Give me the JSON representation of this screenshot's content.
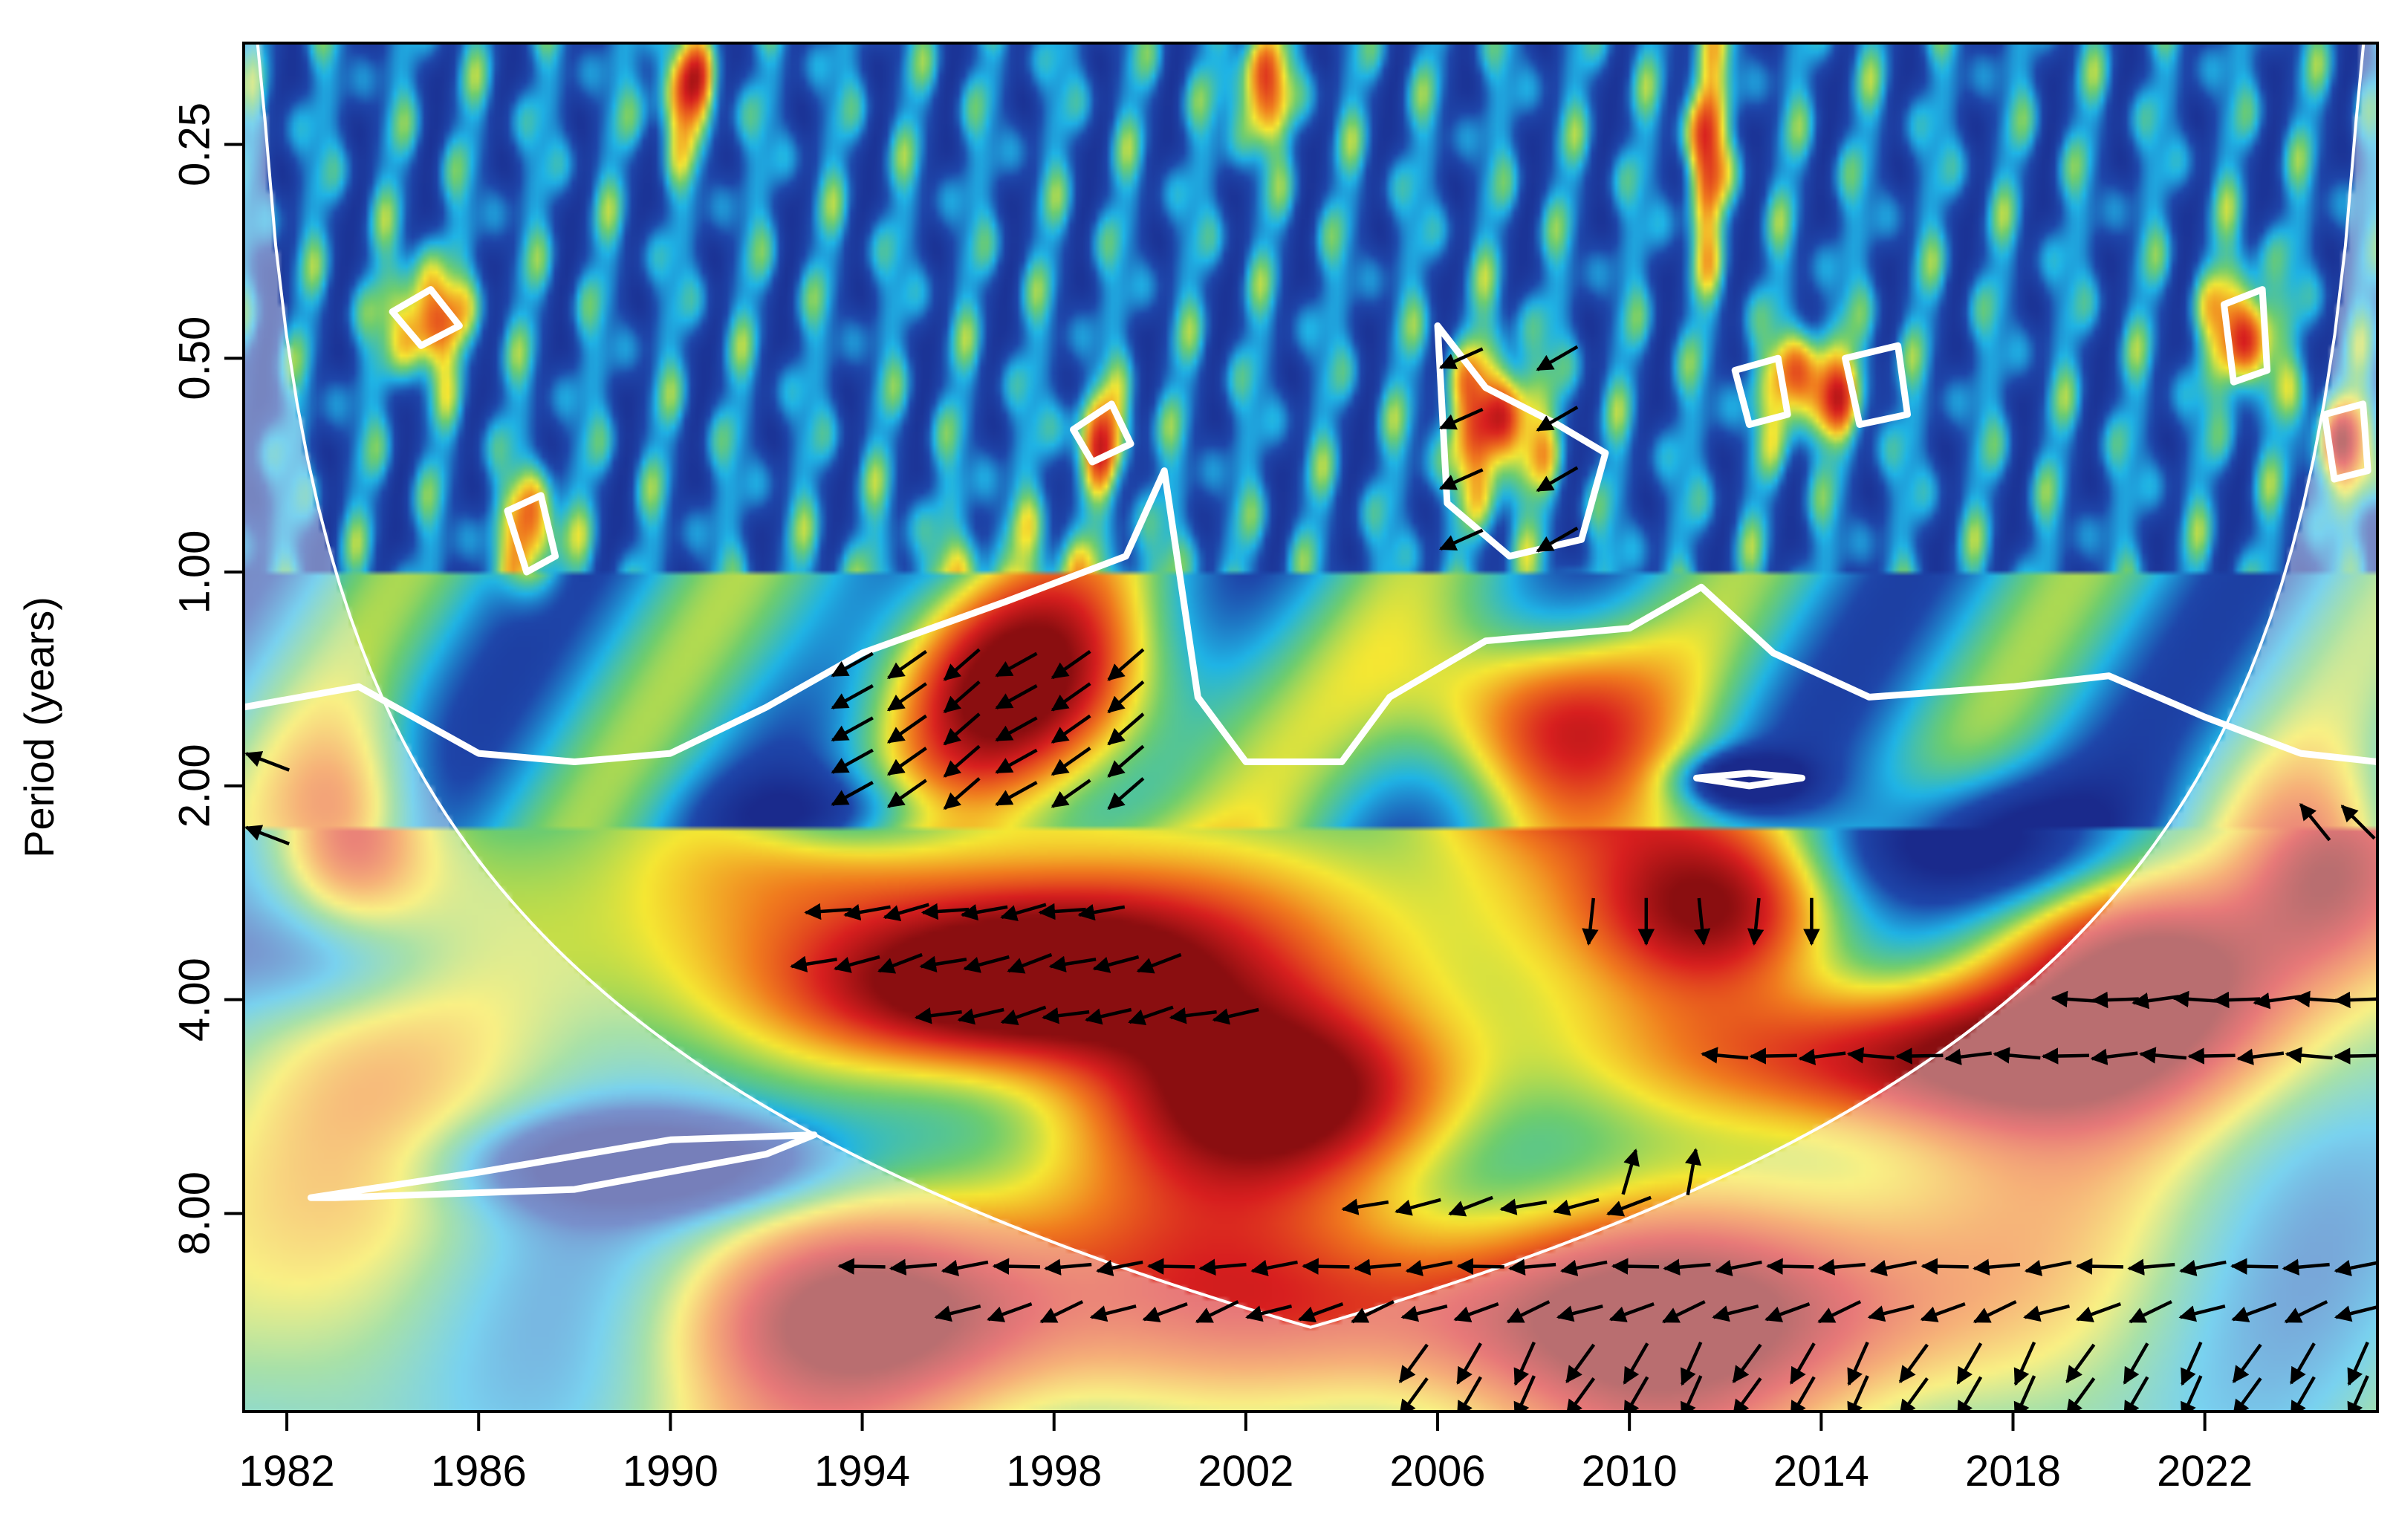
{
  "chart_data": {
    "type": "heatmap",
    "title": "",
    "xlabel": "",
    "ylabel": "Period (years)",
    "x_ticks": [
      "1982",
      "1986",
      "1990",
      "1994",
      "1998",
      "2002",
      "2006",
      "2010",
      "2014",
      "2018",
      "2022"
    ],
    "x_range": [
      1981.1,
      2025.6
    ],
    "y_ticks": [
      "0.25",
      "0.50",
      "1.00",
      "2.00",
      "4.00",
      "8.00"
    ],
    "y_scale": "log2",
    "y_range": [
      0.18,
      15.2
    ],
    "grid": false,
    "legend": "none",
    "colors": {
      "low": "#1a2a8c",
      "mid_low": "#1fb4e6",
      "mid": "#f5e733",
      "mid_high": "#f07a1e",
      "high": "#d81f1f",
      "peak": "#8a0e10",
      "contour": "#ffffff",
      "arrow": "#000000"
    },
    "significance_contours": [
      {
        "region": "main",
        "x": [
          1981.1,
          1983.5,
          1986,
          1988,
          1990,
          1992,
          1994,
          1997,
          1999.5,
          2000.3,
          2001,
          2002,
          2004,
          2005,
          2007,
          2010,
          2011.5,
          2013,
          2015,
          2018,
          2020,
          2022,
          2024,
          2025.6
        ],
        "y": [
          1.55,
          1.45,
          1.8,
          1.85,
          1.8,
          1.55,
          1.3,
          1.1,
          0.95,
          0.72,
          1.5,
          1.85,
          1.85,
          1.5,
          1.25,
          1.2,
          1.05,
          1.3,
          1.5,
          1.45,
          1.4,
          1.6,
          1.8,
          1.85
        ]
      },
      {
        "region": "island-2006",
        "x": [
          2006,
          2007,
          2008.5,
          2009.5,
          2009,
          2007.5,
          2006.2
        ],
        "y": [
          0.45,
          0.55,
          0.62,
          0.68,
          0.9,
          0.95,
          0.8
        ]
      },
      {
        "region": "island-2012",
        "x": [
          2011.4,
          2012.5,
          2013.6,
          2012.5
        ],
        "y": [
          1.95,
          1.92,
          1.95,
          2.0
        ]
      },
      {
        "region": "island-1988",
        "x": [
          1982.5,
          1986,
          1990,
          1993,
          1992,
          1988,
          1983
        ],
        "y": [
          7.6,
          7.0,
          6.3,
          6.2,
          6.6,
          7.4,
          7.6
        ]
      },
      {
        "region": "island-1985",
        "x": [
          1984.2,
          1985,
          1985.6,
          1984.8
        ],
        "y": [
          0.43,
          0.4,
          0.45,
          0.48
        ]
      },
      {
        "region": "island-1987",
        "x": [
          1986.6,
          1987.3,
          1987.6,
          1987
        ],
        "y": [
          0.82,
          0.78,
          0.95,
          1.0
        ]
      },
      {
        "region": "island-1999",
        "x": [
          1998.4,
          1999.2,
          1999.6,
          1998.8
        ],
        "y": [
          0.63,
          0.58,
          0.66,
          0.7
        ]
      },
      {
        "region": "island-2013",
        "x": [
          2012.2,
          2013.1,
          2013.3,
          2012.5
        ],
        "y": [
          0.52,
          0.5,
          0.6,
          0.62
        ]
      },
      {
        "region": "island-2015",
        "x": [
          2014.5,
          2015.6,
          2015.8,
          2014.8
        ],
        "y": [
          0.5,
          0.48,
          0.6,
          0.62
        ]
      },
      {
        "region": "island-2023",
        "x": [
          2022.4,
          2023.2,
          2023.3,
          2022.6
        ],
        "y": [
          0.42,
          0.4,
          0.52,
          0.54
        ]
      },
      {
        "region": "island-2025",
        "x": [
          2024.5,
          2025.3,
          2025.4,
          2024.7
        ],
        "y": [
          0.6,
          0.58,
          0.72,
          0.74
        ]
      }
    ],
    "hot_spots": [
      {
        "x": 1997.5,
        "y": 1.45,
        "intensity": 1.0,
        "sx": 3.2,
        "sy": 0.55
      },
      {
        "x": 1997.8,
        "y": 3.3,
        "intensity": 1.0,
        "sx": 4.2,
        "sy": 0.45
      },
      {
        "x": 1996.5,
        "y": 4.0,
        "intensity": 0.85,
        "sx": 4.0,
        "sy": 0.35
      },
      {
        "x": 2008.0,
        "y": 1.6,
        "intensity": 0.9,
        "sx": 2.5,
        "sy": 0.45
      },
      {
        "x": 2012.0,
        "y": 3.0,
        "intensity": 0.85,
        "sx": 2.5,
        "sy": 0.4
      },
      {
        "x": 2016.0,
        "y": 4.8,
        "intensity": 0.95,
        "sx": 5.5,
        "sy": 0.35
      },
      {
        "x": 2008.0,
        "y": 11.0,
        "intensity": 1.0,
        "sx": 8.0,
        "sy": 0.5
      },
      {
        "x": 2003.0,
        "y": 5.5,
        "intensity": 0.8,
        "sx": 3.5,
        "sy": 0.4
      },
      {
        "x": 1994.0,
        "y": 11.0,
        "intensity": 0.75,
        "sx": 4.0,
        "sy": 0.45
      },
      {
        "x": 2007.2,
        "y": 0.62,
        "intensity": 0.95,
        "sx": 1.0,
        "sy": 0.35
      },
      {
        "x": 1984.9,
        "y": 0.44,
        "intensity": 0.9,
        "sx": 0.8,
        "sy": 0.25
      },
      {
        "x": 1987.1,
        "y": 0.88,
        "intensity": 0.85,
        "sx": 0.6,
        "sy": 0.25
      },
      {
        "x": 2013.8,
        "y": 0.55,
        "intensity": 0.9,
        "sx": 1.0,
        "sy": 0.25
      },
      {
        "x": 2022.8,
        "y": 0.46,
        "intensity": 0.9,
        "sx": 0.7,
        "sy": 0.3
      },
      {
        "x": 2024.9,
        "y": 0.66,
        "intensity": 0.85,
        "sx": 0.7,
        "sy": 0.25
      },
      {
        "x": 1999.0,
        "y": 0.64,
        "intensity": 0.8,
        "sx": 0.6,
        "sy": 0.2
      },
      {
        "x": 2011.6,
        "y": 0.25,
        "intensity": 0.85,
        "sx": 0.4,
        "sy": 0.5
      },
      {
        "x": 1990.3,
        "y": 0.21,
        "intensity": 0.85,
        "sx": 0.6,
        "sy": 0.25
      },
      {
        "x": 2002.3,
        "y": 0.21,
        "intensity": 0.85,
        "sx": 0.6,
        "sy": 0.25
      },
      {
        "x": 2021.0,
        "y": 3.6,
        "intensity": 0.7,
        "sx": 3.0,
        "sy": 0.4
      },
      {
        "x": 1983.3,
        "y": 2.3,
        "intensity": 0.65,
        "sx": 1.5,
        "sy": 0.45
      },
      {
        "x": 2024.5,
        "y": 2.6,
        "intensity": 0.7,
        "sx": 1.8,
        "sy": 0.45
      }
    ],
    "cold_spots": [
      {
        "x": 1989.5,
        "y": 6.8,
        "intensity": 1.0,
        "sx": 3.5,
        "sy": 0.22
      },
      {
        "x": 2012.4,
        "y": 1.96,
        "intensity": 0.9,
        "sx": 1.2,
        "sy": 0.12
      },
      {
        "x": 2017.5,
        "y": 2.4,
        "intensity": 0.7,
        "sx": 3.0,
        "sy": 0.3
      },
      {
        "x": 1983.0,
        "y": 3.5,
        "intensity": 0.5,
        "sx": 2.5,
        "sy": 0.3
      },
      {
        "x": 1993.5,
        "y": 2.2,
        "intensity": 0.5,
        "sx": 2.5,
        "sy": 0.2
      }
    ],
    "arrow_groups": [
      {
        "x_from": 1993.8,
        "x_to": 1999.5,
        "y_from": 1.35,
        "y_to": 2.05,
        "rows": 5,
        "cols": 6,
        "angle": 215
      },
      {
        "x_from": 1993.3,
        "x_to": 1999.0,
        "y_from": 3.0,
        "y_to": 3.0,
        "rows": 1,
        "cols": 8,
        "angle": 190
      },
      {
        "x_from": 1993.0,
        "x_to": 2000.2,
        "y_from": 3.55,
        "y_to": 3.55,
        "rows": 1,
        "cols": 9,
        "angle": 195
      },
      {
        "x_from": 1995.6,
        "x_to": 2001.8,
        "y_from": 4.2,
        "y_to": 4.2,
        "rows": 1,
        "cols": 8,
        "angle": 193
      },
      {
        "x_from": 2009.2,
        "x_to": 2013.8,
        "y_from": 3.1,
        "y_to": 3.1,
        "rows": 1,
        "cols": 5,
        "angle": 270
      },
      {
        "x_from": 2006.5,
        "x_to": 2008.5,
        "y_from": 0.5,
        "y_to": 0.9,
        "rows": 4,
        "cols": 2,
        "angle": 210
      },
      {
        "x_from": 2012.0,
        "x_to": 2025.2,
        "y_from": 4.8,
        "y_to": 4.8,
        "rows": 1,
        "cols": 14,
        "angle": 181
      },
      {
        "x_from": 2019.3,
        "x_to": 2025.2,
        "y_from": 4.0,
        "y_to": 4.0,
        "rows": 1,
        "cols": 8,
        "angle": 182
      },
      {
        "x_from": 2004.5,
        "x_to": 2010.0,
        "y_from": 7.8,
        "y_to": 7.8,
        "rows": 1,
        "cols": 6,
        "angle": 195
      },
      {
        "x_from": 1994.0,
        "x_to": 2025.2,
        "y_from": 9.5,
        "y_to": 9.5,
        "rows": 1,
        "cols": 30,
        "angle": 185
      },
      {
        "x_from": 1996.0,
        "x_to": 2025.2,
        "y_from": 11.0,
        "y_to": 11.0,
        "rows": 1,
        "cols": 28,
        "angle": 200
      },
      {
        "x_from": 2005.5,
        "x_to": 2025.2,
        "y_from": 13.0,
        "y_to": 14.5,
        "rows": 2,
        "cols": 18,
        "angle": 240
      },
      {
        "x_from": 1981.6,
        "x_to": 1981.6,
        "y_from": 1.85,
        "y_to": 2.35,
        "rows": 2,
        "cols": 1,
        "angle": 165
      },
      {
        "x_from": 2024.3,
        "x_to": 2025.2,
        "y_from": 2.25,
        "y_to": 2.25,
        "rows": 1,
        "cols": 2,
        "angle": 135
      },
      {
        "x_from": 2010.0,
        "x_to": 2011.3,
        "y_from": 7.0,
        "y_to": 7.0,
        "rows": 1,
        "cols": 2,
        "angle": 80
      }
    ]
  }
}
